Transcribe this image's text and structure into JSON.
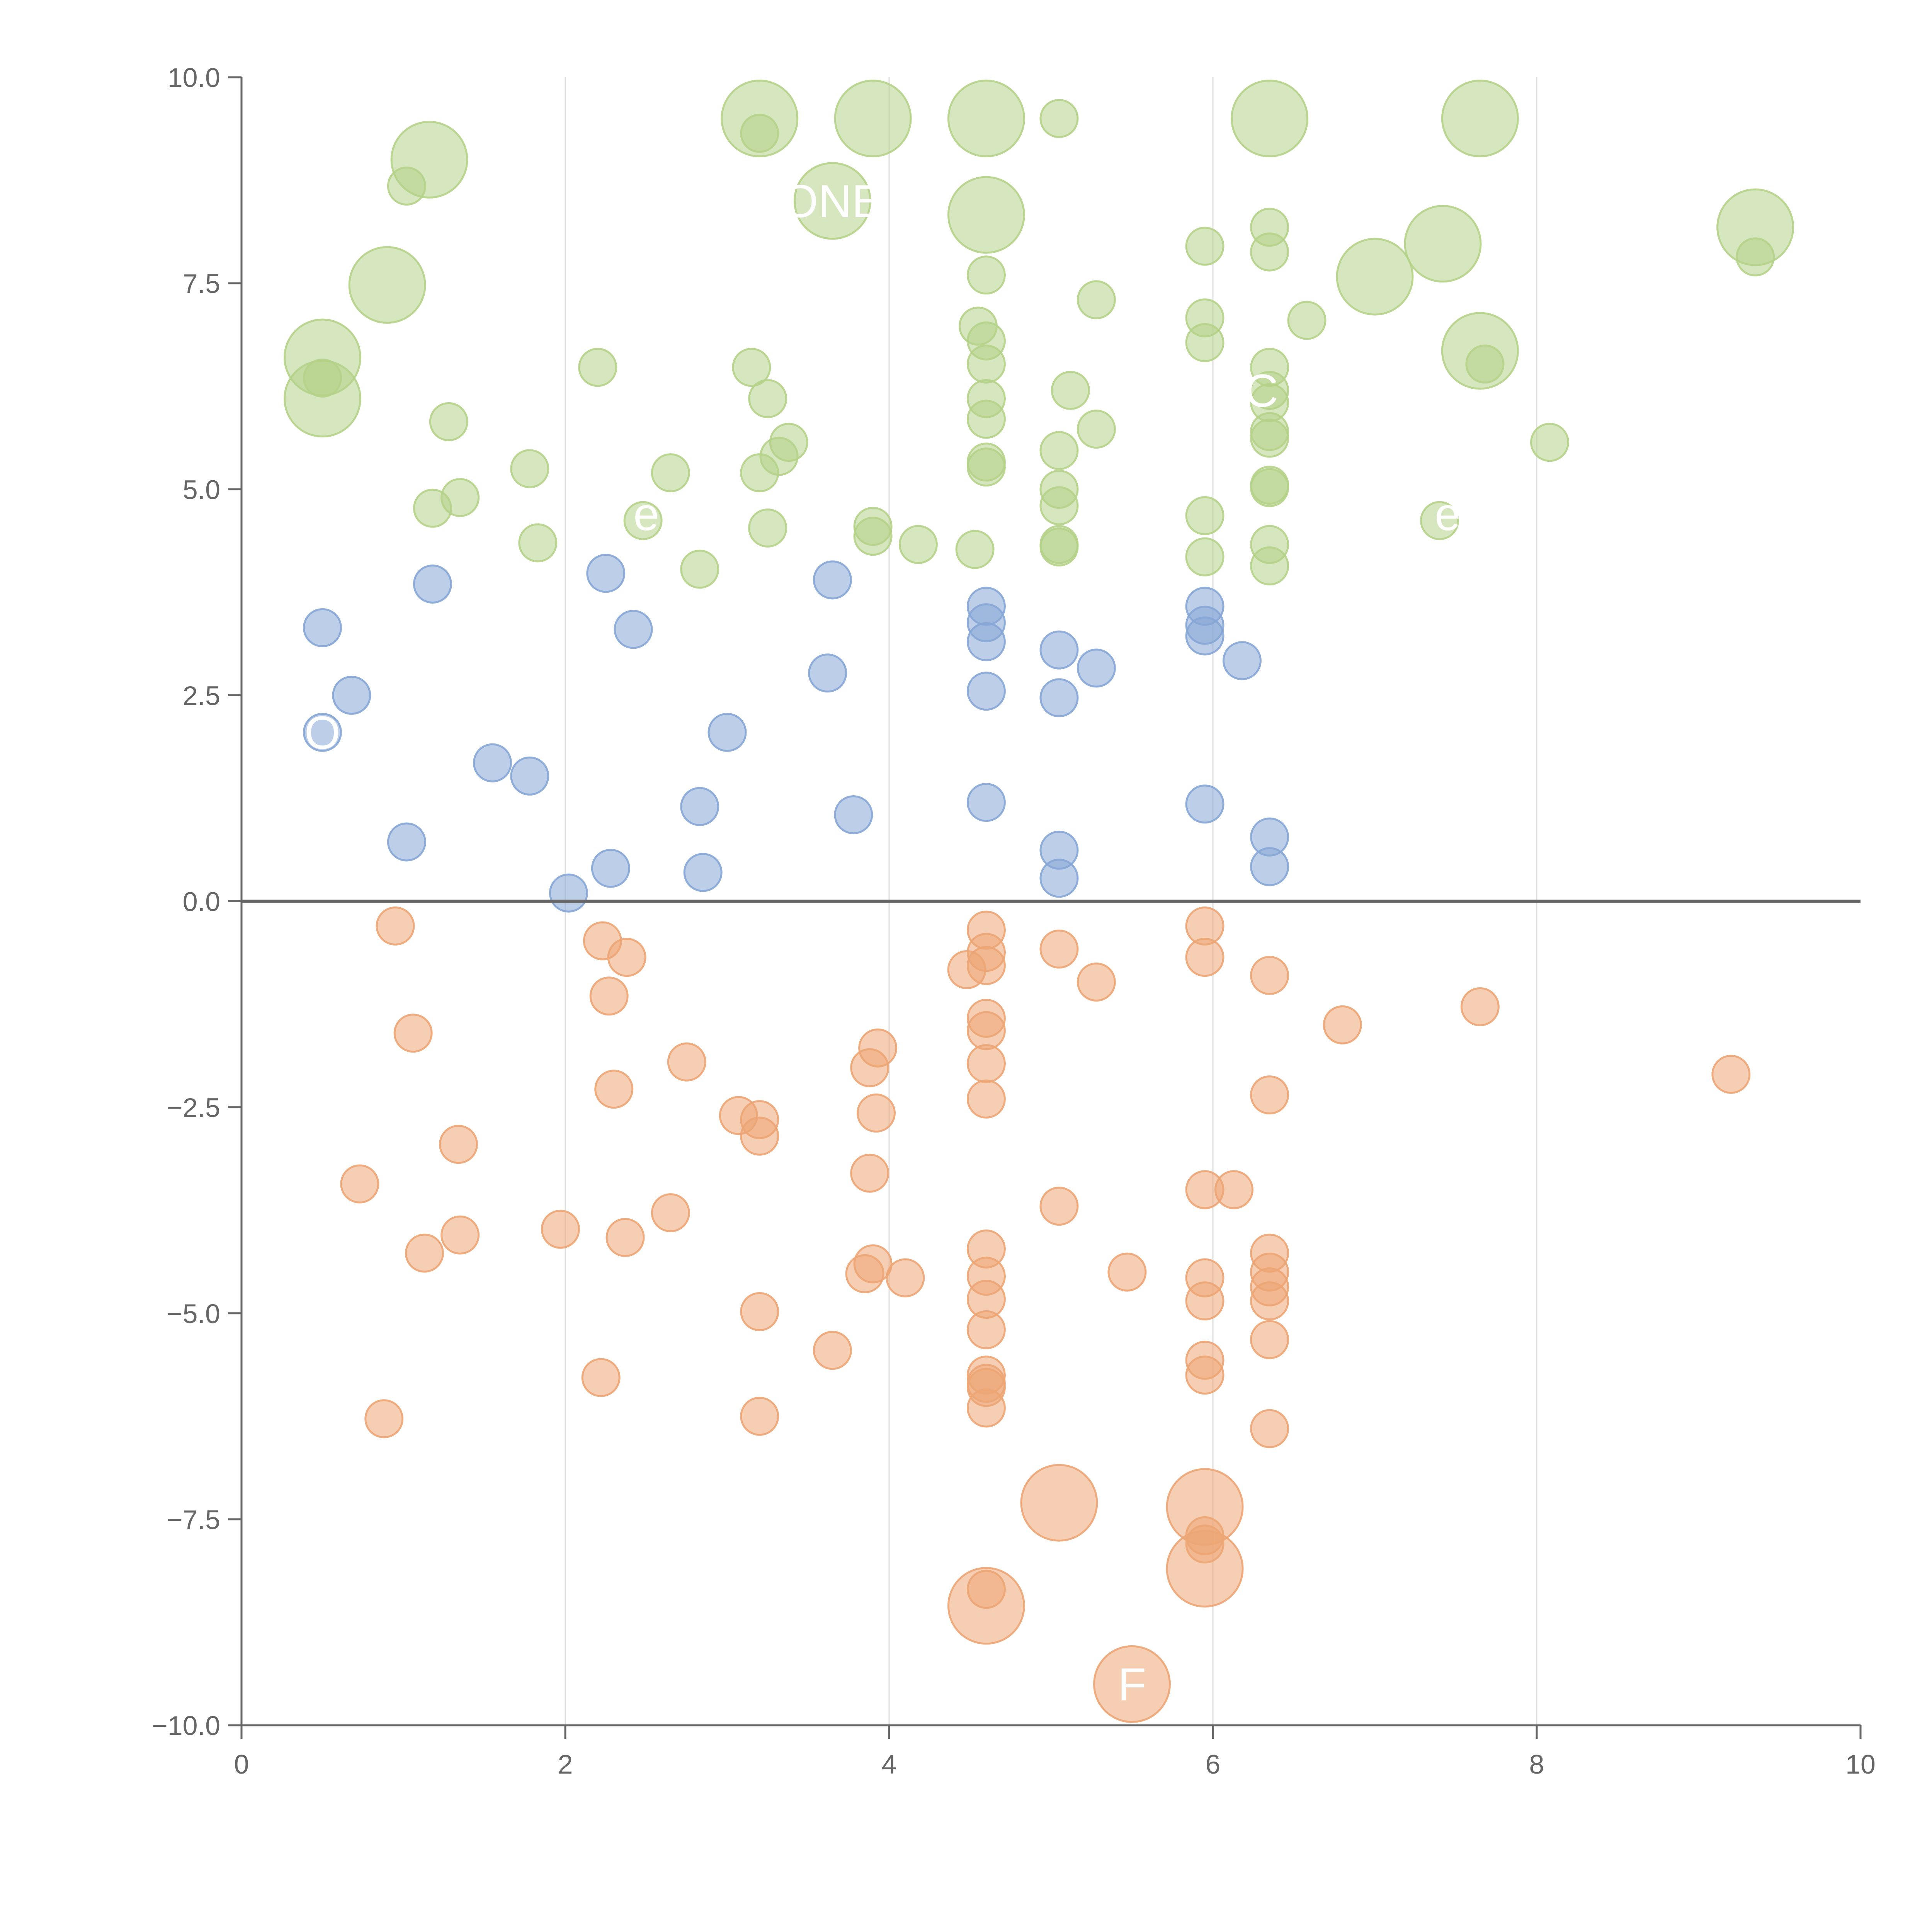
{
  "chart_data": {
    "type": "scatter",
    "title": "",
    "xlabel": "",
    "ylabel": "",
    "xlim": [
      0,
      10
    ],
    "ylim": [
      -10,
      10
    ],
    "x_ticks": [
      0,
      2,
      4,
      6,
      8,
      10
    ],
    "y_ticks": [
      -10,
      -7.5,
      -5,
      -2.5,
      0,
      2.5,
      5,
      7.5,
      10
    ],
    "x_tick_labels": [
      "0",
      "2",
      "4",
      "6",
      "8",
      "10"
    ],
    "y_tick_labels": [
      "−10.0",
      "−7.5",
      "−5.0",
      "−2.5",
      "0.0",
      "2.5",
      "5.0",
      "7.5",
      "10.0"
    ],
    "vertical_gridlines": [
      2,
      4,
      6,
      8
    ],
    "zero_line": 0,
    "colors": {
      "green": "#b5d188",
      "blue": "#86a6d6",
      "orange": "#eca574",
      "axis": "#666666",
      "grid": "#dddddd"
    },
    "bubble_labels": [
      {
        "text": "ONE",
        "x": 3.65,
        "y": 8.5
      },
      {
        "text": "O",
        "x": 0.5,
        "y": 2.05
      },
      {
        "text": "F",
        "x": 5.5,
        "y": -9.5
      },
      {
        "text": "C",
        "x": 6.3,
        "y": 6.2
      },
      {
        "text": "e",
        "x": 2.5,
        "y": 4.7
      },
      {
        "text": "e",
        "x": 7.45,
        "y": 4.7
      }
    ],
    "series": [
      {
        "name": "green",
        "color": "#b5d188",
        "points": [
          {
            "x": 3.2,
            "y": 9.5,
            "size": 1
          },
          {
            "x": 3.9,
            "y": 9.5,
            "size": 1
          },
          {
            "x": 4.6,
            "y": 9.5,
            "size": 1
          },
          {
            "x": 6.35,
            "y": 9.5,
            "size": 1
          },
          {
            "x": 7.65,
            "y": 9.5,
            "size": 1
          },
          {
            "x": 1.16,
            "y": 9.0,
            "size": 1
          },
          {
            "x": 3.65,
            "y": 8.5,
            "size": 1
          },
          {
            "x": 4.6,
            "y": 8.33,
            "size": 1
          },
          {
            "x": 9.35,
            "y": 8.18,
            "size": 1
          },
          {
            "x": 7.42,
            "y": 7.98,
            "size": 1
          },
          {
            "x": 0.9,
            "y": 7.48,
            "size": 1
          },
          {
            "x": 7.0,
            "y": 7.58,
            "size": 1
          },
          {
            "x": 7.65,
            "y": 6.68,
            "size": 1
          },
          {
            "x": 0.5,
            "y": 6.6,
            "size": 1
          },
          {
            "x": 0.5,
            "y": 6.1,
            "size": 1
          },
          {
            "x": 3.2,
            "y": 9.32,
            "size": 0
          },
          {
            "x": 5.05,
            "y": 9.5,
            "size": 0
          },
          {
            "x": 1.02,
            "y": 8.68,
            "size": 0
          },
          {
            "x": 6.35,
            "y": 8.18,
            "size": 0
          },
          {
            "x": 6.35,
            "y": 7.88,
            "size": 0
          },
          {
            "x": 5.95,
            "y": 7.95,
            "size": 0
          },
          {
            "x": 9.35,
            "y": 7.82,
            "size": 0
          },
          {
            "x": 4.6,
            "y": 7.6,
            "size": 0
          },
          {
            "x": 5.28,
            "y": 7.3,
            "size": 0
          },
          {
            "x": 5.95,
            "y": 7.08,
            "size": 0
          },
          {
            "x": 6.58,
            "y": 7.05,
            "size": 0
          },
          {
            "x": 4.55,
            "y": 6.98,
            "size": 0
          },
          {
            "x": 4.6,
            "y": 6.8,
            "size": 0
          },
          {
            "x": 5.95,
            "y": 6.78,
            "size": 0
          },
          {
            "x": 7.68,
            "y": 6.52,
            "size": 0
          },
          {
            "x": 4.6,
            "y": 6.52,
            "size": 0
          },
          {
            "x": 6.35,
            "y": 6.48,
            "size": 0
          },
          {
            "x": 3.15,
            "y": 6.48,
            "size": 0
          },
          {
            "x": 2.2,
            "y": 6.48,
            "size": 0
          },
          {
            "x": 0.5,
            "y": 6.35,
            "size": 0
          },
          {
            "x": 6.35,
            "y": 6.2,
            "size": 0
          },
          {
            "x": 5.12,
            "y": 6.2,
            "size": 0
          },
          {
            "x": 3.25,
            "y": 6.1,
            "size": 0
          },
          {
            "x": 4.6,
            "y": 6.1,
            "size": 0
          },
          {
            "x": 6.35,
            "y": 6.05,
            "size": 0
          },
          {
            "x": 4.6,
            "y": 5.85,
            "size": 0
          },
          {
            "x": 1.28,
            "y": 5.82,
            "size": 0
          },
          {
            "x": 5.28,
            "y": 5.73,
            "size": 0
          },
          {
            "x": 6.35,
            "y": 5.7,
            "size": 0
          },
          {
            "x": 6.35,
            "y": 5.62,
            "size": 0
          },
          {
            "x": 8.08,
            "y": 5.57,
            "size": 0
          },
          {
            "x": 3.38,
            "y": 5.57,
            "size": 0
          },
          {
            "x": 5.05,
            "y": 5.47,
            "size": 0
          },
          {
            "x": 3.32,
            "y": 5.4,
            "size": 0
          },
          {
            "x": 4.6,
            "y": 5.33,
            "size": 0
          },
          {
            "x": 4.6,
            "y": 5.27,
            "size": 0
          },
          {
            "x": 1.78,
            "y": 5.25,
            "size": 0
          },
          {
            "x": 3.2,
            "y": 5.2,
            "size": 0
          },
          {
            "x": 2.65,
            "y": 5.2,
            "size": 0
          },
          {
            "x": 6.35,
            "y": 5.05,
            "size": 0
          },
          {
            "x": 6.35,
            "y": 5.02,
            "size": 0
          },
          {
            "x": 5.05,
            "y": 5.0,
            "size": 0
          },
          {
            "x": 1.35,
            "y": 4.9,
            "size": 0
          },
          {
            "x": 5.05,
            "y": 4.8,
            "size": 0
          },
          {
            "x": 1.18,
            "y": 4.77,
            "size": 0
          },
          {
            "x": 5.95,
            "y": 4.68,
            "size": 0
          },
          {
            "x": 2.48,
            "y": 4.62,
            "size": 0
          },
          {
            "x": 7.4,
            "y": 4.62,
            "size": 0
          },
          {
            "x": 3.25,
            "y": 4.53,
            "size": 0
          },
          {
            "x": 3.9,
            "y": 4.55,
            "size": 0
          },
          {
            "x": 3.9,
            "y": 4.43,
            "size": 0
          },
          {
            "x": 1.83,
            "y": 4.35,
            "size": 0
          },
          {
            "x": 4.18,
            "y": 4.33,
            "size": 0
          },
          {
            "x": 5.05,
            "y": 4.33,
            "size": 0
          },
          {
            "x": 6.35,
            "y": 4.33,
            "size": 0
          },
          {
            "x": 5.05,
            "y": 4.3,
            "size": 0
          },
          {
            "x": 4.53,
            "y": 4.27,
            "size": 0
          },
          {
            "x": 5.95,
            "y": 4.18,
            "size": 0
          },
          {
            "x": 6.35,
            "y": 4.07,
            "size": 0
          },
          {
            "x": 2.83,
            "y": 4.03,
            "size": 0
          }
        ]
      },
      {
        "name": "blue",
        "color": "#86a6d6",
        "points": [
          {
            "x": 2.25,
            "y": 3.98,
            "size": 0
          },
          {
            "x": 3.65,
            "y": 3.9,
            "size": 0
          },
          {
            "x": 1.18,
            "y": 3.85,
            "size": 0
          },
          {
            "x": 4.6,
            "y": 3.58,
            "size": 0
          },
          {
            "x": 5.95,
            "y": 3.58,
            "size": 0
          },
          {
            "x": 4.6,
            "y": 3.38,
            "size": 0
          },
          {
            "x": 5.95,
            "y": 3.35,
            "size": 0
          },
          {
            "x": 0.5,
            "y": 3.32,
            "size": 0
          },
          {
            "x": 2.42,
            "y": 3.3,
            "size": 0
          },
          {
            "x": 5.95,
            "y": 3.22,
            "size": 0
          },
          {
            "x": 4.6,
            "y": 3.15,
            "size": 0
          },
          {
            "x": 5.05,
            "y": 3.05,
            "size": 0
          },
          {
            "x": 6.18,
            "y": 2.92,
            "size": 0
          },
          {
            "x": 5.28,
            "y": 2.83,
            "size": 0
          },
          {
            "x": 3.62,
            "y": 2.77,
            "size": 0
          },
          {
            "x": 4.6,
            "y": 2.55,
            "size": 0
          },
          {
            "x": 0.68,
            "y": 2.5,
            "size": 0
          },
          {
            "x": 5.05,
            "y": 2.47,
            "size": 0
          },
          {
            "x": 0.5,
            "y": 2.05,
            "size": 0
          },
          {
            "x": 3.0,
            "y": 2.05,
            "size": 0
          },
          {
            "x": 1.55,
            "y": 1.68,
            "size": 0
          },
          {
            "x": 1.78,
            "y": 1.52,
            "size": 0
          },
          {
            "x": 4.6,
            "y": 1.2,
            "size": 0
          },
          {
            "x": 5.95,
            "y": 1.18,
            "size": 0
          },
          {
            "x": 2.83,
            "y": 1.15,
            "size": 0
          },
          {
            "x": 3.78,
            "y": 1.05,
            "size": 0
          },
          {
            "x": 6.35,
            "y": 0.78,
            "size": 0
          },
          {
            "x": 1.02,
            "y": 0.72,
            "size": 0
          },
          {
            "x": 5.05,
            "y": 0.62,
            "size": 0
          },
          {
            "x": 6.35,
            "y": 0.42,
            "size": 0
          },
          {
            "x": 2.28,
            "y": 0.4,
            "size": 0
          },
          {
            "x": 2.85,
            "y": 0.35,
            "size": 0
          },
          {
            "x": 5.05,
            "y": 0.28,
            "size": 0
          },
          {
            "x": 2.02,
            "y": 0.1,
            "size": 0
          }
        ]
      },
      {
        "name": "orange",
        "color": "#eca574",
        "points": [
          {
            "x": 0.95,
            "y": -0.3,
            "size": 0
          },
          {
            "x": 5.95,
            "y": -0.3,
            "size": 0
          },
          {
            "x": 4.6,
            "y": -0.35,
            "size": 0
          },
          {
            "x": 2.23,
            "y": -0.48,
            "size": 0
          },
          {
            "x": 5.05,
            "y": -0.58,
            "size": 0
          },
          {
            "x": 4.6,
            "y": -0.62,
            "size": 0
          },
          {
            "x": 2.38,
            "y": -0.68,
            "size": 0
          },
          {
            "x": 5.95,
            "y": -0.68,
            "size": 0
          },
          {
            "x": 4.6,
            "y": -0.78,
            "size": 0
          },
          {
            "x": 4.48,
            "y": -0.83,
            "size": 0
          },
          {
            "x": 6.35,
            "y": -0.9,
            "size": 0
          },
          {
            "x": 5.28,
            "y": -0.98,
            "size": 0
          },
          {
            "x": 2.27,
            "y": -1.15,
            "size": 0
          },
          {
            "x": 7.65,
            "y": -1.28,
            "size": 0
          },
          {
            "x": 4.6,
            "y": -1.42,
            "size": 0
          },
          {
            "x": 6.8,
            "y": -1.5,
            "size": 0
          },
          {
            "x": 4.6,
            "y": -1.57,
            "size": 0
          },
          {
            "x": 1.06,
            "y": -1.6,
            "size": 0
          },
          {
            "x": 3.93,
            "y": -1.78,
            "size": 0
          },
          {
            "x": 2.75,
            "y": -1.95,
            "size": 0
          },
          {
            "x": 4.6,
            "y": -1.97,
            "size": 0
          },
          {
            "x": 3.88,
            "y": -2.02,
            "size": 0
          },
          {
            "x": 9.2,
            "y": -2.1,
            "size": 0
          },
          {
            "x": 2.3,
            "y": -2.28,
            "size": 0
          },
          {
            "x": 6.35,
            "y": -2.35,
            "size": 0
          },
          {
            "x": 4.6,
            "y": -2.4,
            "size": 0
          },
          {
            "x": 3.92,
            "y": -2.57,
            "size": 0
          },
          {
            "x": 3.07,
            "y": -2.6,
            "size": 0
          },
          {
            "x": 3.2,
            "y": -2.65,
            "size": 0
          },
          {
            "x": 3.2,
            "y": -2.85,
            "size": 0
          },
          {
            "x": 1.34,
            "y": -2.95,
            "size": 0
          },
          {
            "x": 3.88,
            "y": -3.3,
            "size": 0
          },
          {
            "x": 0.73,
            "y": -3.43,
            "size": 0
          },
          {
            "x": 5.95,
            "y": -3.5,
            "size": 0
          },
          {
            "x": 6.13,
            "y": -3.5,
            "size": 0
          },
          {
            "x": 5.05,
            "y": -3.7,
            "size": 0
          },
          {
            "x": 2.65,
            "y": -3.78,
            "size": 0
          },
          {
            "x": 1.97,
            "y": -3.98,
            "size": 0
          },
          {
            "x": 1.35,
            "y": -4.05,
            "size": 0
          },
          {
            "x": 2.37,
            "y": -4.08,
            "size": 0
          },
          {
            "x": 4.6,
            "y": -4.22,
            "size": 0
          },
          {
            "x": 6.35,
            "y": -4.27,
            "size": 0
          },
          {
            "x": 1.13,
            "y": -4.27,
            "size": 0
          },
          {
            "x": 3.9,
            "y": -4.4,
            "size": 0
          },
          {
            "x": 6.35,
            "y": -4.5,
            "size": 0
          },
          {
            "x": 5.47,
            "y": -4.5,
            "size": 0
          },
          {
            "x": 3.85,
            "y": -4.52,
            "size": 0
          },
          {
            "x": 4.6,
            "y": -4.55,
            "size": 0
          },
          {
            "x": 4.1,
            "y": -4.57,
            "size": 0
          },
          {
            "x": 5.95,
            "y": -4.57,
            "size": 0
          },
          {
            "x": 6.35,
            "y": -4.68,
            "size": 0
          },
          {
            "x": 4.6,
            "y": -4.83,
            "size": 0
          },
          {
            "x": 6.35,
            "y": -4.85,
            "size": 0
          },
          {
            "x": 5.95,
            "y": -4.85,
            "size": 0
          },
          {
            "x": 3.2,
            "y": -4.98,
            "size": 0
          },
          {
            "x": 4.6,
            "y": -5.2,
            "size": 0
          },
          {
            "x": 6.35,
            "y": -5.32,
            "size": 0
          },
          {
            "x": 3.65,
            "y": -5.45,
            "size": 0
          },
          {
            "x": 5.95,
            "y": -5.57,
            "size": 0
          },
          {
            "x": 5.95,
            "y": -5.75,
            "size": 0
          },
          {
            "x": 4.6,
            "y": -5.75,
            "size": 0
          },
          {
            "x": 2.22,
            "y": -5.78,
            "size": 0
          },
          {
            "x": 4.6,
            "y": -5.85,
            "size": 0
          },
          {
            "x": 4.6,
            "y": -5.9,
            "size": 0
          },
          {
            "x": 4.6,
            "y": -6.15,
            "size": 0
          },
          {
            "x": 3.2,
            "y": -6.25,
            "size": 0
          },
          {
            "x": 0.88,
            "y": -6.28,
            "size": 0
          },
          {
            "x": 6.35,
            "y": -6.4,
            "size": 0
          },
          {
            "x": 5.95,
            "y": -7.7,
            "size": 0
          },
          {
            "x": 5.95,
            "y": -7.8,
            "size": 0
          },
          {
            "x": 4.6,
            "y": -8.35,
            "size": 0
          },
          {
            "x": 5.05,
            "y": -7.3,
            "size": 1
          },
          {
            "x": 5.95,
            "y": -7.35,
            "size": 1
          },
          {
            "x": 5.95,
            "y": -8.1,
            "size": 1
          },
          {
            "x": 4.6,
            "y": -8.55,
            "size": 1
          },
          {
            "x": 5.5,
            "y": -9.5,
            "size": 1
          }
        ]
      }
    ]
  }
}
